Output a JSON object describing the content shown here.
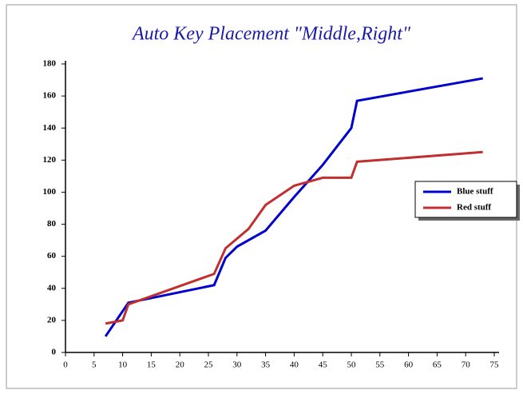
{
  "chart_data": {
    "type": "line",
    "title": "Auto Key Placement \"Middle,Right\"",
    "series": [
      {
        "name": "Blue stuff",
        "color": "#0000cc",
        "x": [
          7,
          11,
          26,
          28,
          30,
          35,
          40,
          45,
          50,
          51,
          73
        ],
        "values": [
          10,
          31,
          42,
          59,
          66,
          76,
          97,
          117,
          140,
          157,
          171
        ]
      },
      {
        "name": "Red stuff",
        "color": "#c03030",
        "x": [
          7,
          10,
          11,
          26,
          28,
          32,
          35,
          40,
          45,
          50,
          51,
          73
        ],
        "values": [
          18,
          20,
          30,
          49,
          65,
          77,
          92,
          104,
          109,
          109,
          119,
          125
        ]
      }
    ],
    "xlim": [
      0,
      75
    ],
    "xticks": [
      0,
      5,
      10,
      15,
      20,
      25,
      30,
      35,
      40,
      45,
      50,
      55,
      60,
      65,
      70,
      75
    ],
    "ylim": [
      0,
      180
    ],
    "yticks": [
      0,
      20,
      40,
      60,
      80,
      100,
      120,
      140,
      160,
      180
    ],
    "legend": "middle-right"
  }
}
